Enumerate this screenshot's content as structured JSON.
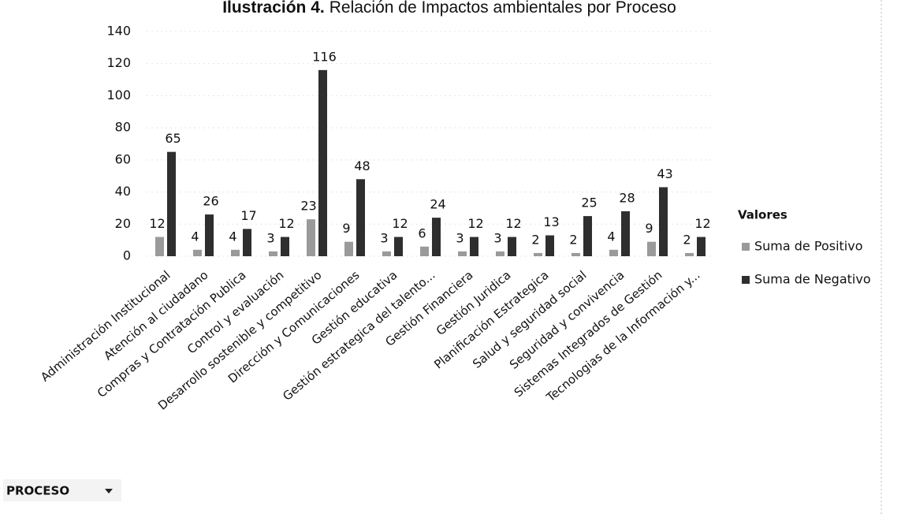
{
  "chart_data": {
    "type": "bar",
    "title_label": "Ilustración 4.",
    "title": "Relación de Impactos ambientales por Proceso",
    "categories": [
      "Administración Institucional",
      "Atención al ciudadano",
      "Compras y Contratación Publica",
      "Control y evaluación",
      "Desarrollo sostenible y competitivo",
      "Dirección y Comunicaciones",
      "Gestión educativa",
      "Gestión estrategica del talento...",
      "Gestión Financiera",
      "Gestión Juridica",
      "Planificación Estrategica",
      "Salud y seguridad social",
      "Seguridad y convivencia",
      "Sistemas Integrados de Gestión",
      "Tecnologias de la Información y..."
    ],
    "series": [
      {
        "name": "Suma de Positivo",
        "color": "#9a9a9a",
        "values": [
          12,
          4,
          4,
          3,
          23,
          9,
          3,
          6,
          3,
          3,
          2,
          2,
          4,
          9,
          2
        ]
      },
      {
        "name": "Suma de Negativo",
        "color": "#2e2e2e",
        "values": [
          65,
          26,
          17,
          12,
          116,
          48,
          12,
          24,
          12,
          12,
          13,
          25,
          28,
          43,
          12
        ]
      }
    ],
    "ylim": [
      0,
      140
    ],
    "yticks": [
      0,
      20,
      40,
      60,
      80,
      100,
      120,
      140
    ],
    "legend_title": "Valores",
    "legend": "right",
    "filter_button": "PROCESO"
  }
}
